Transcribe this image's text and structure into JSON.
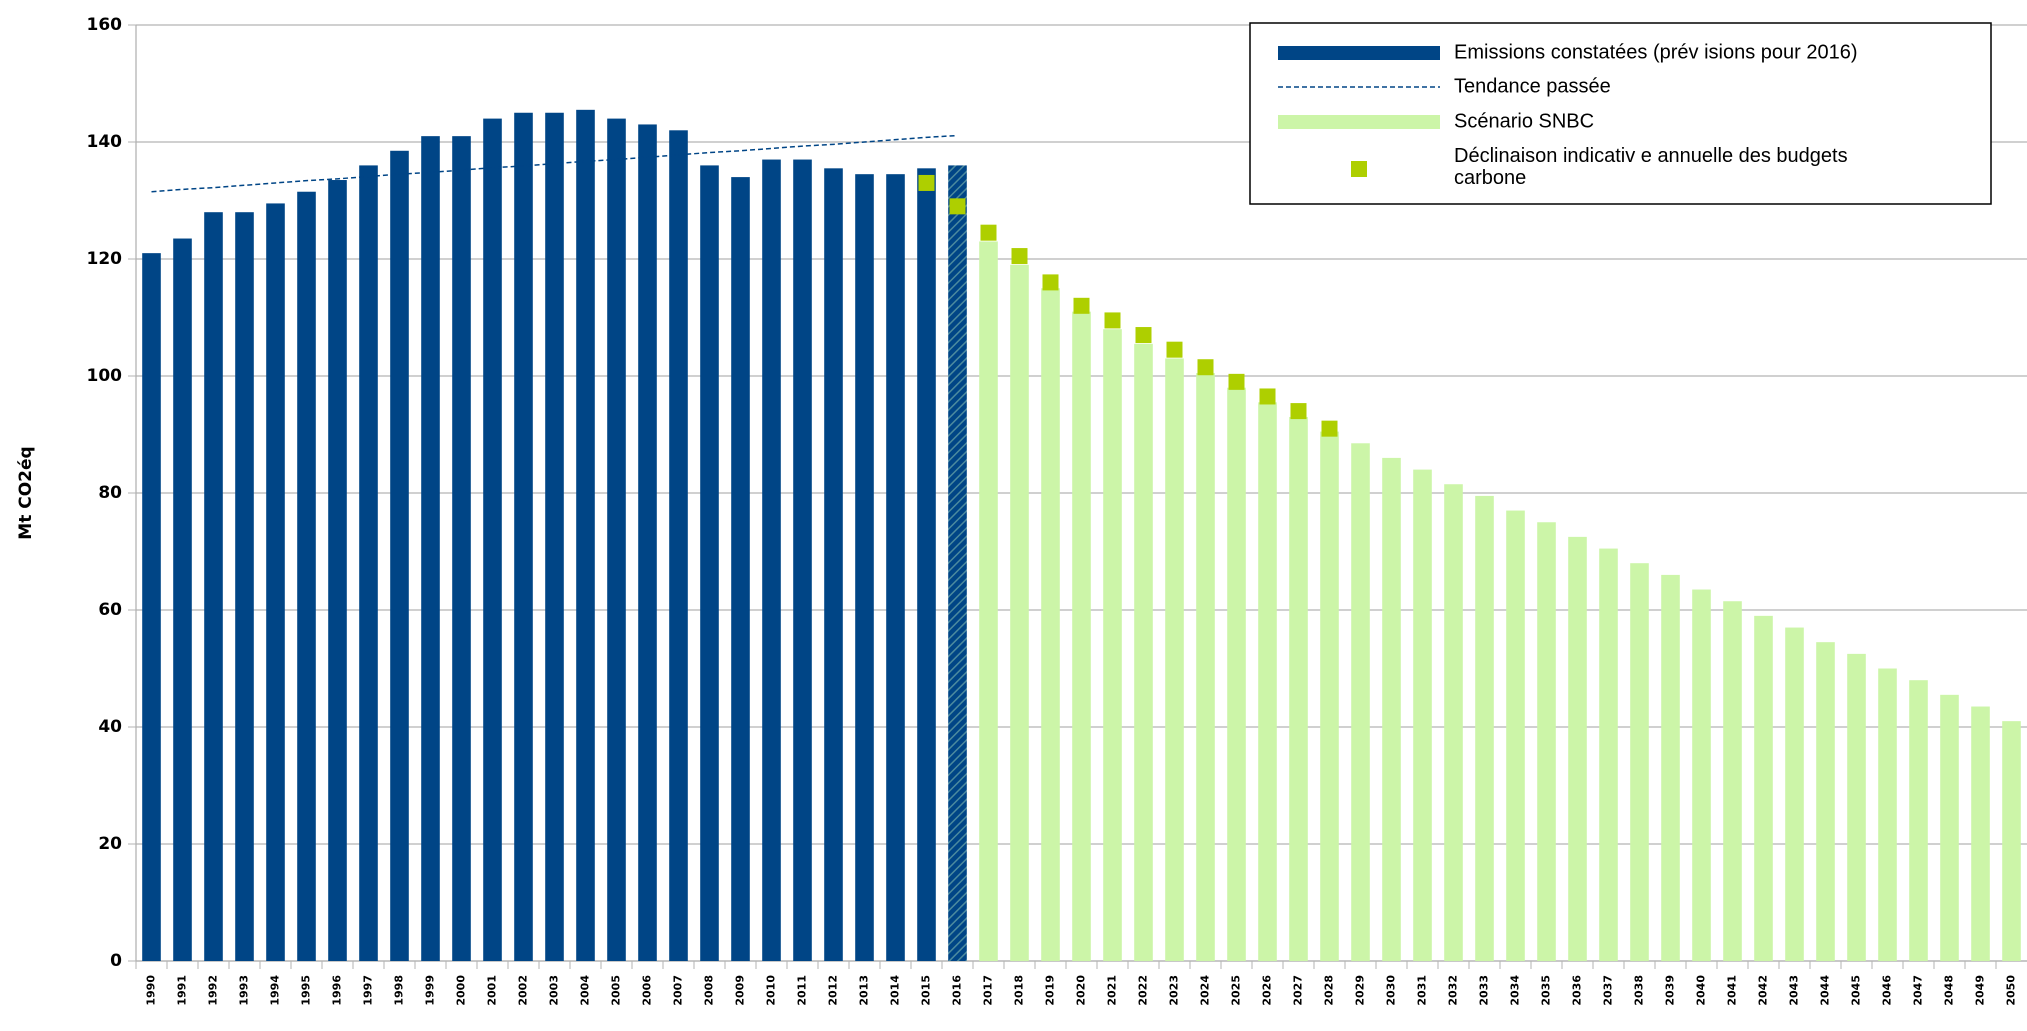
{
  "chart_data": {
    "type": "bar",
    "y_label": "Mt CO2éq",
    "categories": [
      "1990",
      "1991",
      "1992",
      "1993",
      "1994",
      "1995",
      "1996",
      "1997",
      "1998",
      "1999",
      "2000",
      "2001",
      "2002",
      "2003",
      "2004",
      "2005",
      "2006",
      "2007",
      "2008",
      "2009",
      "2010",
      "2011",
      "2012",
      "2013",
      "2014",
      "2015",
      "2016",
      "2017",
      "2018",
      "2019",
      "2020",
      "2021",
      "2022",
      "2023",
      "2024",
      "2025",
      "2026",
      "2027",
      "2028",
      "2029",
      "2030",
      "2031",
      "2032",
      "2033",
      "2034",
      "2035",
      "2036",
      "2037",
      "2038",
      "2039",
      "2040",
      "2041",
      "2042",
      "2043",
      "2044",
      "2045",
      "2046",
      "2047",
      "2048",
      "2049",
      "2050"
    ],
    "series": [
      {
        "name": "Emissions constatées (prév isions pour 2016)",
        "kind": "bar",
        "color": "#004586",
        "values": [
          121,
          123.5,
          128,
          128,
          129.5,
          131.5,
          133.5,
          136,
          138.5,
          141,
          141,
          144,
          145,
          145,
          145.5,
          144,
          143,
          142,
          136,
          134,
          137,
          137,
          135.5,
          134.5,
          134.5,
          135.5,
          136,
          null,
          null,
          null,
          null,
          null,
          null,
          null,
          null,
          null,
          null,
          null,
          null,
          null,
          null,
          null,
          null,
          null,
          null,
          null,
          null,
          null,
          null,
          null,
          null,
          null,
          null,
          null,
          null,
          null,
          null,
          null,
          null,
          null,
          null
        ]
      },
      {
        "name": "Tendance passée",
        "kind": "line",
        "color": "#004586",
        "values": [
          131.5,
          131.9,
          132.2,
          132.6,
          133,
          133.4,
          133.7,
          134.1,
          134.5,
          134.8,
          135.2,
          135.6,
          135.9,
          136.3,
          136.7,
          137,
          137.4,
          137.8,
          138.2,
          138.5,
          138.9,
          139.3,
          139.6,
          140,
          140.4,
          140.8,
          141.1,
          null,
          null,
          null,
          null,
          null,
          null,
          null,
          null,
          null,
          null,
          null,
          null,
          null,
          null,
          null,
          null,
          null,
          null,
          null,
          null,
          null,
          null,
          null,
          null,
          null,
          null,
          null,
          null,
          null,
          null,
          null,
          null,
          null,
          null
        ]
      },
      {
        "name": "Scénario SNBC",
        "kind": "bar",
        "color": "#ccf5a8",
        "values": [
          null,
          null,
          null,
          null,
          null,
          null,
          null,
          null,
          null,
          null,
          null,
          null,
          null,
          null,
          null,
          null,
          null,
          null,
          null,
          null,
          null,
          null,
          null,
          null,
          null,
          null,
          null,
          123,
          119,
          115,
          111,
          108,
          105.5,
          103,
          100.5,
          98,
          95.5,
          93,
          90.5,
          88.5,
          86,
          84,
          81.5,
          79.5,
          77,
          75,
          72.5,
          70.5,
          68,
          66,
          63.5,
          61.5,
          59,
          57,
          54.5,
          52.5,
          50,
          48,
          45.5,
          43.5,
          41
        ]
      },
      {
        "name": "Déclinaison indicativ e annuelle des budgets carbone",
        "kind": "marker",
        "color": "#aecf00",
        "values": [
          null,
          null,
          null,
          null,
          null,
          null,
          null,
          null,
          null,
          null,
          null,
          null,
          null,
          null,
          null,
          null,
          null,
          null,
          null,
          null,
          null,
          null,
          null,
          null,
          null,
          133,
          129,
          124.5,
          120.5,
          116,
          112,
          109.5,
          107,
          104.5,
          101.5,
          99,
          96.5,
          94,
          91,
          null,
          null,
          null,
          null,
          null,
          null,
          null,
          null,
          null,
          null,
          null,
          null,
          null,
          null,
          null,
          null,
          null,
          null,
          null,
          null,
          null,
          null
        ]
      }
    ],
    "ylim": [
      0,
      160
    ],
    "yticks": [
      0,
      20,
      40,
      60,
      80,
      100,
      120,
      140,
      160
    ],
    "grid": true,
    "legend": "top-right"
  }
}
